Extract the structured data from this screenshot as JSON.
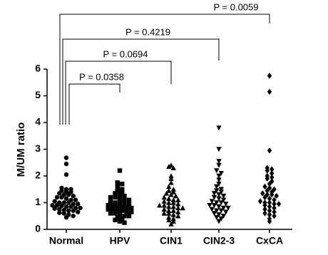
{
  "chart_data": {
    "type": "strip",
    "ylabel": "M/UM ratio",
    "categories": [
      "Normal",
      "HPV",
      "CIN1",
      "CIN2-3",
      "CxCA"
    ],
    "markers": [
      "circle",
      "square",
      "triangle-up",
      "triangle-down",
      "diamond"
    ],
    "color": "#000000",
    "ylim": [
      0,
      6
    ],
    "yticks": [
      0,
      1,
      2,
      3,
      4,
      5,
      6
    ],
    "values": [
      [
        2.68,
        2.45,
        2.05,
        1.55,
        1.5,
        1.5,
        1.45,
        1.42,
        1.4,
        1.35,
        1.3,
        1.3,
        1.25,
        1.2,
        1.2,
        1.15,
        1.1,
        1.1,
        1.05,
        1.0,
        1.0,
        1.0,
        0.95,
        0.95,
        0.9,
        0.9,
        0.88,
        0.85,
        0.85,
        0.8,
        0.8,
        0.78,
        0.75,
        0.72,
        0.7,
        0.7,
        0.65,
        0.62,
        0.6,
        0.55,
        0.5,
        0.45
      ],
      [
        2.2,
        1.75,
        1.7,
        1.6,
        1.5,
        1.45,
        1.4,
        1.35,
        1.3,
        1.25,
        1.2,
        1.2,
        1.15,
        1.1,
        1.1,
        1.05,
        1.0,
        1.0,
        0.95,
        0.95,
        0.9,
        0.9,
        0.85,
        0.85,
        0.8,
        0.8,
        0.75,
        0.75,
        0.7,
        0.7,
        0.65,
        0.65,
        0.6,
        0.6,
        0.55,
        0.5,
        0.5,
        0.45,
        0.4,
        0.35,
        0.3,
        0.25
      ],
      [
        2.4,
        2.35,
        2.3,
        2.0,
        1.9,
        1.75,
        1.6,
        1.5,
        1.45,
        1.4,
        1.35,
        1.3,
        1.25,
        1.2,
        1.15,
        1.1,
        1.1,
        1.05,
        1.0,
        1.0,
        0.95,
        0.9,
        0.9,
        0.85,
        0.85,
        0.8,
        0.8,
        0.75,
        0.7,
        0.7,
        0.65,
        0.6,
        0.6,
        0.55,
        0.5,
        0.45,
        0.4,
        0.35,
        0.3,
        0.2
      ],
      [
        3.8,
        3.0,
        2.55,
        2.4,
        2.2,
        2.1,
        2.0,
        1.85,
        1.7,
        1.6,
        1.5,
        1.45,
        1.4,
        1.35,
        1.3,
        1.25,
        1.2,
        1.15,
        1.1,
        1.05,
        1.0,
        1.0,
        0.95,
        0.9,
        0.9,
        0.85,
        0.8,
        0.8,
        0.75,
        0.7,
        0.7,
        0.65,
        0.6,
        0.55,
        0.5,
        0.45,
        0.4,
        0.3
      ],
      [
        5.75,
        5.15,
        2.95,
        2.3,
        2.25,
        2.2,
        2.1,
        2.0,
        1.95,
        1.9,
        1.8,
        1.7,
        1.6,
        1.55,
        1.5,
        1.45,
        1.4,
        1.35,
        1.3,
        1.3,
        1.25,
        1.2,
        1.15,
        1.1,
        1.05,
        1.0,
        1.0,
        0.95,
        0.95,
        0.9,
        0.85,
        0.8,
        0.75,
        0.7,
        0.65,
        0.6,
        0.55,
        0.5,
        0.4,
        0.3
      ]
    ],
    "comparisons": [
      {
        "label": "P = 0.0358",
        "from": 0,
        "to": 1
      },
      {
        "label": "P = 0.0694",
        "from": 0,
        "to": 2
      },
      {
        "label": "P = 0.4219",
        "from": 0,
        "to": 3
      },
      {
        "label": "P = 0.0059",
        "from": 0,
        "to": 4
      }
    ]
  }
}
